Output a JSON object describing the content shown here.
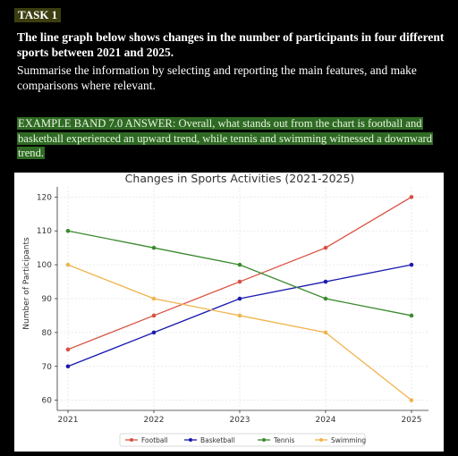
{
  "task": {
    "label": "TASK 1",
    "prompt_bold": "The line graph below shows changes in the number of participants in four different sports between 2021 and 2025.",
    "prompt_plain": "Summarise the information by selecting and reporting the main features, and make comparisons where relevant.",
    "answer": "EXAMPLE BAND 7.0 ANSWER: Overall, what stands out from the chart is football and basketball experienced an upward trend, while tennis and swimming witnessed a downward trend."
  },
  "chart_data": {
    "type": "line",
    "title": "Changes in Sports Activities (2021-2025)",
    "xlabel": "",
    "ylabel": "Number of Participants",
    "x": [
      "2021",
      "2022",
      "2023",
      "2024",
      "2025"
    ],
    "yticks": [
      "60",
      "70",
      "80",
      "90",
      "100",
      "110",
      "120"
    ],
    "ylim": [
      57,
      123
    ],
    "grid": true,
    "legend_position": "bottom",
    "series": [
      {
        "name": "Football",
        "color": "#d9503f",
        "values": [
          75,
          85,
          95,
          105,
          120
        ]
      },
      {
        "name": "Basketball",
        "color": "#1a1ab0",
        "values": [
          70,
          80,
          90,
          95,
          100
        ]
      },
      {
        "name": "Tennis",
        "color": "#3a8a2e",
        "values": [
          110,
          105,
          100,
          90,
          85
        ]
      },
      {
        "name": "Swimming",
        "color": "#f0b44c",
        "values": [
          100,
          90,
          85,
          80,
          60
        ]
      }
    ]
  }
}
